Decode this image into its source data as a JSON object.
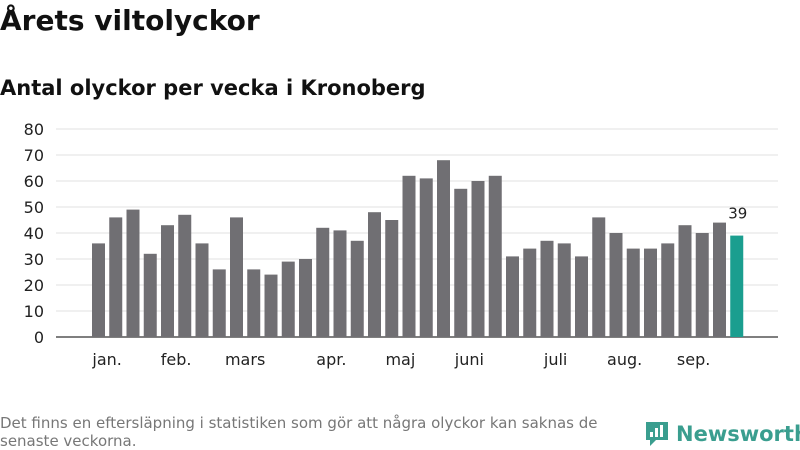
{
  "title": "Årets viltolyckor",
  "subtitle": "Antal olyckor per vecka i Kronoberg",
  "footnote": "Det finns en eftersläpning i statistiken som gör att några olyckor kan saknas de senaste veckorna.",
  "brand": {
    "name": "Newsworthy",
    "color": "#3a9e8f"
  },
  "chart_data": {
    "type": "bar",
    "title": "Årets viltolyckor",
    "subtitle": "Antal olyckor per vecka i Kronoberg",
    "xlabel": "",
    "ylabel": "",
    "ylim": [
      0,
      80
    ],
    "yticks": [
      0,
      10,
      20,
      30,
      40,
      50,
      60,
      70,
      80
    ],
    "grid": true,
    "bar_color": "#706f73",
    "highlight_color": "#1a9e8f",
    "values": [
      36,
      46,
      49,
      32,
      43,
      47,
      36,
      26,
      46,
      26,
      24,
      29,
      30,
      42,
      41,
      37,
      48,
      45,
      62,
      61,
      68,
      57,
      60,
      62,
      31,
      34,
      37,
      36,
      31,
      46,
      40,
      34,
      34,
      36,
      43,
      40,
      44,
      39
    ],
    "month_labels": [
      {
        "label": "jan.",
        "at": 0.5
      },
      {
        "label": "feb.",
        "at": 4.5
      },
      {
        "label": "mars",
        "at": 8.5
      },
      {
        "label": "apr.",
        "at": 13.5
      },
      {
        "label": "maj",
        "at": 17.5
      },
      {
        "label": "juni",
        "at": 21.5
      },
      {
        "label": "juli",
        "at": 26.5
      },
      {
        "label": "aug.",
        "at": 30.5
      },
      {
        "label": "sep.",
        "at": 34.5
      }
    ],
    "annotations": [
      {
        "index": 37,
        "text": "39"
      }
    ]
  }
}
